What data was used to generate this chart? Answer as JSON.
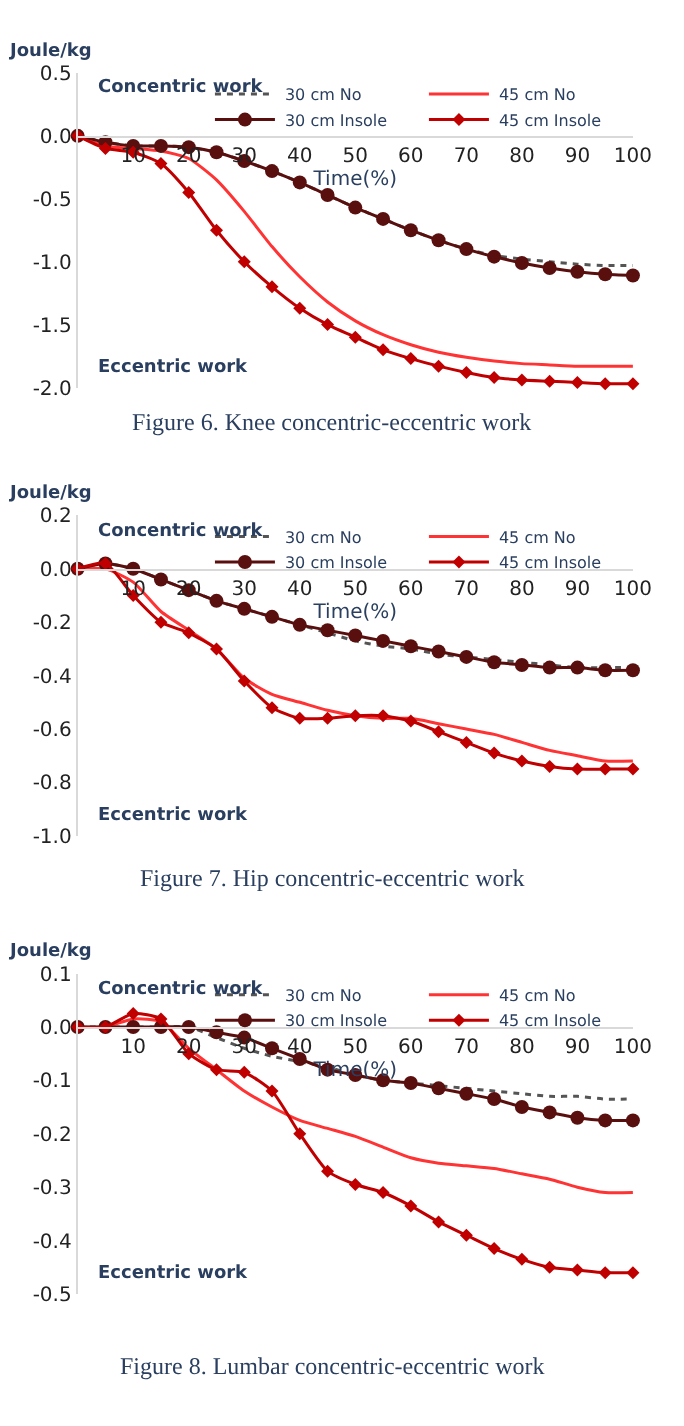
{
  "chart_data": [
    {
      "type": "line",
      "title": "Figure 6. Knee concentric-eccentric work",
      "xlabel": "Time(%)",
      "ylabel": "Joule/kg",
      "annotations": [
        "Concentric work",
        "Eccentric work"
      ],
      "x": [
        0,
        5,
        10,
        15,
        20,
        25,
        30,
        35,
        40,
        45,
        50,
        55,
        60,
        65,
        70,
        75,
        80,
        85,
        90,
        95,
        100
      ],
      "xlim": [
        0,
        100
      ],
      "xticks": [
        10,
        20,
        30,
        40,
        50,
        60,
        70,
        80,
        90,
        100
      ],
      "ylim": [
        -2,
        0.5
      ],
      "yticks": [
        {
          "value": -2,
          "label": "-2.0"
        },
        {
          "value": -1.5,
          "label": "-1.5"
        },
        {
          "value": -1,
          "label": "-1.0"
        },
        {
          "value": -0.5,
          "label": "-0.5"
        },
        {
          "value": 0,
          "label": "0.0"
        },
        {
          "value": 0.5,
          "label": "0.5"
        }
      ],
      "legend": "top right",
      "series": [
        {
          "name": "30 cm No",
          "color": "#555555",
          "line_style": "dotted",
          "marker": "none",
          "values": [
            0,
            -0.05,
            -0.08,
            -0.08,
            -0.09,
            -0.13,
            -0.2,
            -0.28,
            -0.37,
            -0.47,
            -0.57,
            -0.66,
            -0.75,
            -0.83,
            -0.9,
            -0.95,
            -0.98,
            -1.0,
            -1.02,
            -1.03,
            -1.03
          ]
        },
        {
          "name": "45 cm No",
          "color": "#ff3333",
          "line_style": "solid",
          "marker": "none",
          "values": [
            0,
            -0.08,
            -0.1,
            -0.12,
            -0.18,
            -0.35,
            -0.6,
            -0.88,
            -1.12,
            -1.32,
            -1.47,
            -1.58,
            -1.66,
            -1.72,
            -1.76,
            -1.79,
            -1.81,
            -1.82,
            -1.83,
            -1.83,
            -1.83
          ]
        },
        {
          "name": "30 cm Insole",
          "color": "#5a0f0f",
          "line_style": "solid",
          "marker": "circle",
          "values": [
            0,
            -0.05,
            -0.08,
            -0.08,
            -0.09,
            -0.13,
            -0.2,
            -0.28,
            -0.37,
            -0.47,
            -0.57,
            -0.66,
            -0.75,
            -0.83,
            -0.9,
            -0.96,
            -1.01,
            -1.05,
            -1.08,
            -1.1,
            -1.11
          ]
        },
        {
          "name": "45 cm Insole",
          "color": "#c00000",
          "line_style": "solid",
          "marker": "diamond",
          "values": [
            0,
            -0.1,
            -0.13,
            -0.22,
            -0.45,
            -0.75,
            -1.0,
            -1.2,
            -1.37,
            -1.5,
            -1.6,
            -1.7,
            -1.77,
            -1.83,
            -1.88,
            -1.92,
            -1.94,
            -1.95,
            -1.96,
            -1.97,
            -1.97
          ]
        }
      ]
    },
    {
      "type": "line",
      "title": "Figure 7. Hip concentric-eccentric work",
      "xlabel": "Time(%)",
      "ylabel": "Joule/kg",
      "annotations": [
        "Concentric work",
        "Eccentric work"
      ],
      "x": [
        0,
        5,
        10,
        15,
        20,
        25,
        30,
        35,
        40,
        45,
        50,
        55,
        60,
        65,
        70,
        75,
        80,
        85,
        90,
        95,
        100
      ],
      "xlim": [
        0,
        100
      ],
      "xticks": [
        10,
        20,
        30,
        40,
        50,
        60,
        70,
        80,
        90,
        100
      ],
      "ylim": [
        -1,
        0.2
      ],
      "yticks": [
        {
          "value": -1,
          "label": "-1.0"
        },
        {
          "value": -0.8,
          "label": "-0.8"
        },
        {
          "value": -0.6,
          "label": "-0.6"
        },
        {
          "value": -0.4,
          "label": "-0.4"
        },
        {
          "value": -0.2,
          "label": "-0.2"
        },
        {
          "value": 0,
          "label": "0.0"
        },
        {
          "value": 0.2,
          "label": "0.2"
        }
      ],
      "legend": "top right",
      "series": [
        {
          "name": "30 cm No",
          "color": "#555555",
          "line_style": "dotted",
          "marker": "none",
          "values": [
            0,
            0.02,
            0.0,
            -0.04,
            -0.08,
            -0.12,
            -0.15,
            -0.18,
            -0.21,
            -0.24,
            -0.27,
            -0.29,
            -0.3,
            -0.32,
            -0.33,
            -0.34,
            -0.35,
            -0.36,
            -0.37,
            -0.37,
            -0.37
          ]
        },
        {
          "name": "45 cm No",
          "color": "#ff3333",
          "line_style": "solid",
          "marker": "none",
          "values": [
            0,
            0.0,
            -0.05,
            -0.16,
            -0.23,
            -0.3,
            -0.41,
            -0.47,
            -0.5,
            -0.53,
            -0.55,
            -0.56,
            -0.56,
            -0.58,
            -0.6,
            -0.62,
            -0.65,
            -0.68,
            -0.7,
            -0.72,
            -0.72
          ]
        },
        {
          "name": "30 cm Insole",
          "color": "#5a0f0f",
          "line_style": "solid",
          "marker": "circle",
          "values": [
            0,
            0.02,
            0.0,
            -0.04,
            -0.08,
            -0.12,
            -0.15,
            -0.18,
            -0.21,
            -0.23,
            -0.25,
            -0.27,
            -0.29,
            -0.31,
            -0.33,
            -0.35,
            -0.36,
            -0.37,
            -0.37,
            -0.38,
            -0.38
          ]
        },
        {
          "name": "45 cm Insole",
          "color": "#c00000",
          "line_style": "solid",
          "marker": "diamond",
          "values": [
            0,
            0.02,
            -0.1,
            -0.2,
            -0.24,
            -0.3,
            -0.42,
            -0.52,
            -0.56,
            -0.56,
            -0.55,
            -0.55,
            -0.57,
            -0.61,
            -0.65,
            -0.69,
            -0.72,
            -0.74,
            -0.75,
            -0.75,
            -0.75
          ]
        }
      ]
    },
    {
      "type": "line",
      "title": "Figure 8. Lumbar concentric-eccentric work",
      "xlabel": "Time(%)",
      "ylabel": "Joule/kg",
      "annotations": [
        "Concentric work",
        "Eccentric work"
      ],
      "x": [
        0,
        5,
        10,
        15,
        20,
        25,
        30,
        35,
        40,
        45,
        50,
        55,
        60,
        65,
        70,
        75,
        80,
        85,
        90,
        95,
        100
      ],
      "xlim": [
        0,
        100
      ],
      "xticks": [
        10,
        20,
        30,
        40,
        50,
        60,
        70,
        80,
        90,
        100
      ],
      "ylim": [
        -0.5,
        0.1
      ],
      "yticks": [
        {
          "value": -0.5,
          "label": "-0.5"
        },
        {
          "value": -0.4,
          "label": "-0.4"
        },
        {
          "value": -0.3,
          "label": "-0.3"
        },
        {
          "value": -0.2,
          "label": "-0.2"
        },
        {
          "value": -0.1,
          "label": "-0.1"
        },
        {
          "value": 0,
          "label": "0.0"
        },
        {
          "value": 0.1,
          "label": "0.1"
        }
      ],
      "legend": "top right",
      "series": [
        {
          "name": "30 cm No",
          "color": "#555555",
          "line_style": "dotted",
          "marker": "none",
          "values": [
            0,
            0,
            0,
            0,
            0,
            -0.02,
            -0.04,
            -0.055,
            -0.065,
            -0.075,
            -0.09,
            -0.1,
            -0.105,
            -0.11,
            -0.115,
            -0.12,
            -0.125,
            -0.13,
            -0.13,
            -0.135,
            -0.135
          ]
        },
        {
          "name": "45 cm No",
          "color": "#ff3333",
          "line_style": "solid",
          "marker": "none",
          "values": [
            0,
            0,
            0.015,
            0.01,
            -0.04,
            -0.08,
            -0.12,
            -0.15,
            -0.175,
            -0.19,
            -0.205,
            -0.225,
            -0.245,
            -0.255,
            -0.26,
            -0.265,
            -0.275,
            -0.285,
            -0.3,
            -0.31,
            -0.31
          ]
        },
        {
          "name": "30 cm Insole",
          "color": "#5a0f0f",
          "line_style": "solid",
          "marker": "circle",
          "values": [
            0,
            0,
            0,
            0,
            0,
            -0.01,
            -0.02,
            -0.04,
            -0.06,
            -0.08,
            -0.09,
            -0.1,
            -0.105,
            -0.115,
            -0.125,
            -0.135,
            -0.15,
            -0.16,
            -0.17,
            -0.175,
            -0.175
          ]
        },
        {
          "name": "45 cm Insole",
          "color": "#c00000",
          "line_style": "solid",
          "marker": "diamond",
          "values": [
            0,
            0,
            0.025,
            0.015,
            -0.05,
            -0.08,
            -0.085,
            -0.12,
            -0.2,
            -0.27,
            -0.295,
            -0.31,
            -0.335,
            -0.365,
            -0.39,
            -0.415,
            -0.435,
            -0.45,
            -0.455,
            -0.46,
            -0.46
          ]
        }
      ]
    }
  ]
}
